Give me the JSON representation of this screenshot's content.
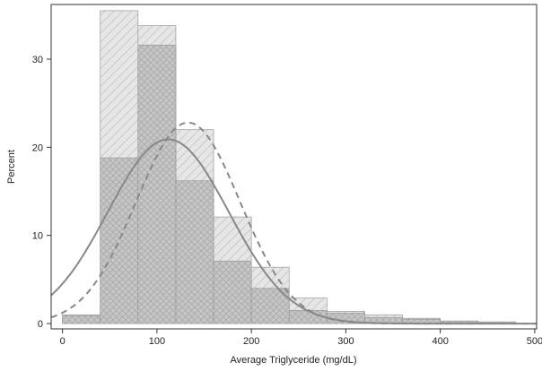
{
  "chart_data": {
    "type": "histogram",
    "xlabel": "Average Triglyceride (mg/dL)",
    "ylabel": "Percent",
    "xlim": [
      -12,
      502
    ],
    "ylim": [
      -0.6,
      36.2
    ],
    "x_ticks": [
      0,
      100,
      200,
      300,
      400,
      500
    ],
    "y_ticks": [
      0,
      10,
      20,
      30
    ],
    "bin_width": 40,
    "bin_starts": [
      0,
      40,
      80,
      120,
      160,
      200,
      240,
      280,
      320,
      360,
      400,
      440
    ],
    "series": [
      {
        "values": [
          1.0,
          35.5,
          33.8,
          22.0,
          12.1,
          6.4,
          2.9,
          1.4,
          1.0,
          0.6,
          0.3,
          0.2
        ],
        "fill": "#e4e4e4",
        "hatch": "diagonal",
        "curve_style": "dashed",
        "normal_mean": 133,
        "normal_sd": 55,
        "normal_peak": 22.8
      },
      {
        "values": [
          0.9,
          18.8,
          31.6,
          16.2,
          7.1,
          4.0,
          1.5,
          1.2,
          0.7,
          0.5,
          0.2,
          0.1
        ],
        "fill": "#c4c4c4",
        "hatch": "crosshatch",
        "curve_style": "solid",
        "normal_mean": 112,
        "normal_sd": 64,
        "normal_peak": 20.9
      }
    ],
    "colors": {
      "curve": "#888888",
      "outline": "#9a9a9a",
      "axis": "#333333"
    },
    "grid": false
  }
}
